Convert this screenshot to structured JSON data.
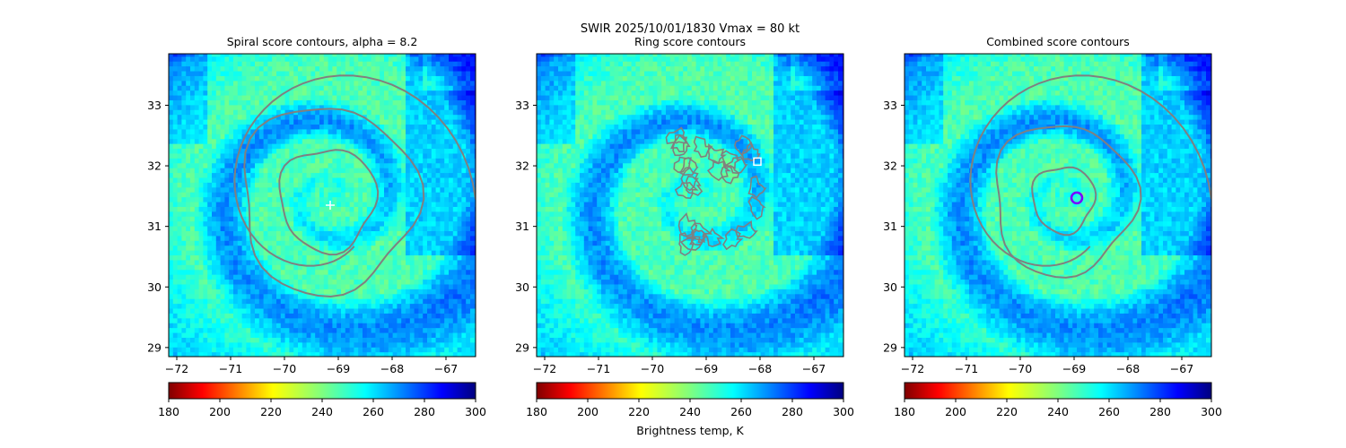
{
  "suptitle_line1": "SWIR  2025/10/01/1830    Vmax = 80 kt",
  "colorbar_label": "Brightness temp, K",
  "chart_data": [
    {
      "type": "heatmap",
      "title": "Spiral score contours, alpha =  8.2",
      "xlim": [
        -72.15,
        -66.45
      ],
      "ylim": [
        28.85,
        33.85
      ],
      "xticks": [
        -72,
        -71,
        -70,
        -69,
        -68,
        -67
      ],
      "yticks": [
        29,
        30,
        31,
        32,
        33
      ],
      "center": [
        -69.2,
        31.45
      ],
      "rings": [
        0.85,
        1.55
      ],
      "best_fit_marker": {
        "lon": -69.15,
        "lat": 31.35,
        "shape": "plus",
        "color": "#ffffff"
      },
      "colormap": "jet_r",
      "colorbar": {
        "min": 180,
        "max": 300,
        "ticks": [
          180,
          200,
          220,
          240,
          260,
          280,
          300
        ]
      }
    },
    {
      "type": "heatmap",
      "title": "Ring score contours",
      "xlim": [
        -72.15,
        -66.45
      ],
      "ylim": [
        28.85,
        33.85
      ],
      "xticks": [
        -72,
        -71,
        -70,
        -69,
        -68,
        -67
      ],
      "yticks": [
        29,
        30,
        31,
        32,
        33
      ],
      "center": [
        -69.2,
        31.45
      ],
      "rings": [],
      "best_fit_marker": {
        "lon": -68.05,
        "lat": 32.07,
        "shape": "square",
        "color": "#ffffff"
      },
      "colormap": "jet_r",
      "colorbar": {
        "min": 180,
        "max": 300,
        "ticks": [
          180,
          200,
          220,
          240,
          260,
          280,
          300
        ]
      }
    },
    {
      "type": "heatmap",
      "title": "Combined score contours",
      "xlim": [
        -72.15,
        -66.45
      ],
      "ylim": [
        28.85,
        33.85
      ],
      "xticks": [
        -72,
        -71,
        -70,
        -69,
        -68,
        -67
      ],
      "yticks": [
        29,
        30,
        31,
        32,
        33
      ],
      "center": [
        -69.2,
        31.45
      ],
      "rings": [
        0.55,
        1.25
      ],
      "best_fit_marker": {
        "lon": -68.95,
        "lat": 31.47,
        "shape": "circle",
        "color": "#7a00ff"
      },
      "colormap": "jet_r",
      "colorbar": {
        "min": 180,
        "max": 300,
        "ticks": [
          180,
          200,
          220,
          240,
          260,
          280,
          300
        ]
      }
    }
  ]
}
